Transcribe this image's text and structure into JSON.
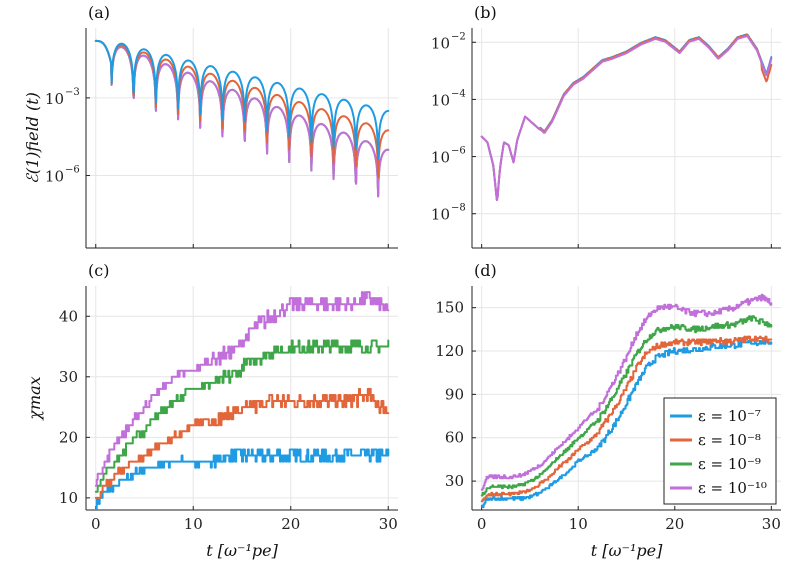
{
  "colors": [
    "#1f9be3",
    "#e2663a",
    "#3ea649",
    "#c16fda"
  ],
  "legend": {
    "entries": [
      "ε = 10⁻⁷",
      "ε = 10⁻⁸",
      "ε = 10⁻⁹",
      "ε = 10⁻¹⁰"
    ],
    "placement": "bottom-right of panel (d)"
  },
  "chart_data": [
    {
      "id": "a",
      "panel_label": "(a)",
      "type": "line",
      "yscale": "log",
      "xlim": [
        -1,
        31
      ],
      "ylim_log10": [
        -8.8,
        -0.3
      ],
      "ytick_exponents": [
        -3,
        -6
      ],
      "ylabel": "ℰ(1)field (t)",
      "xlabel": "",
      "grid": true,
      "envelope_log10": [
        {
          "series": "ε = 10⁻⁷",
          "start": -0.8,
          "end_slope": -0.08,
          "end": -3.8
        },
        {
          "series": "ε = 10⁻⁸",
          "start": -0.8,
          "end_slope": -0.115,
          "end": -4.4
        },
        {
          "series": "ε = 10⁻⁹",
          "start": -0.8,
          "end_slope": -0.13,
          "end": -5.2
        },
        {
          "series": "ε = 10⁻¹⁰",
          "start": -0.8,
          "end_slope": -0.13,
          "end": -5.2
        }
      ]
    },
    {
      "id": "b",
      "panel_label": "(b)",
      "type": "line",
      "yscale": "log",
      "xlim": [
        -1,
        31
      ],
      "ylim_log10": [
        -9.2,
        -1.5
      ],
      "ytick_exponents": [
        -2,
        -4,
        -6,
        -8
      ],
      "grid": true,
      "x": [
        0,
        0.6,
        1.2,
        1.6,
        1.9,
        2.3,
        2.8,
        3.3,
        3.7,
        4.5,
        5.5,
        6.5,
        7.3,
        8.5,
        9.5,
        10.5,
        11.5,
        12.5,
        13.5,
        15,
        16.5,
        18,
        19,
        20.5,
        21.5,
        22.5,
        23.5,
        24.5,
        25.5,
        26.5,
        27.5,
        28.5,
        29.5,
        30
      ],
      "y_log10": [
        -5.3,
        -5.5,
        -6.3,
        -7.6,
        -6.4,
        -5.5,
        -5.6,
        -6.2,
        -5.4,
        -4.6,
        -4.9,
        -5.2,
        -4.8,
        -3.9,
        -3.5,
        -3.3,
        -3.0,
        -2.7,
        -2.6,
        -2.4,
        -2.1,
        -1.9,
        -2.0,
        -2.4,
        -2.0,
        -1.9,
        -2.2,
        -2.6,
        -2.3,
        -1.9,
        -1.8,
        -2.3,
        -3.2,
        -2.6
      ]
    },
    {
      "id": "c",
      "panel_label": "(c)",
      "type": "line",
      "xlim": [
        -1,
        31
      ],
      "ylim": [
        8,
        45
      ],
      "yticks": [
        10,
        20,
        30,
        40
      ],
      "xticks": [
        0,
        10,
        20,
        30
      ],
      "ylabel": "χmax",
      "xlabel": "t [ω⁻¹pe]",
      "grid": true,
      "x": [
        0,
        1,
        2,
        3,
        4,
        5,
        6,
        8,
        10,
        12,
        14,
        16,
        18,
        20,
        22,
        24,
        26,
        28,
        30
      ],
      "series": [
        {
          "name": "ε = 10⁻⁷",
          "values": [
            9,
            11,
            12,
            13,
            14,
            15,
            15,
            16,
            16,
            16,
            17,
            17,
            17,
            17,
            17,
            17,
            17,
            17,
            17
          ]
        },
        {
          "name": "ε = 10⁻⁸",
          "values": [
            10,
            12,
            14,
            15,
            16,
            17,
            18,
            20,
            22,
            23,
            24,
            25,
            26,
            26,
            26,
            26,
            26,
            27,
            24
          ]
        },
        {
          "name": "ε = 10⁻⁹",
          "values": [
            11,
            14,
            16,
            18,
            20,
            21,
            23,
            26,
            28,
            29,
            30,
            33,
            34,
            35,
            35,
            35,
            35,
            35,
            35
          ]
        },
        {
          "name": "ε = 10⁻¹⁰",
          "values": [
            13,
            16,
            19,
            21,
            23,
            25,
            27,
            30,
            31,
            33,
            34,
            38,
            40,
            42,
            42,
            42,
            42,
            43,
            41
          ]
        }
      ]
    },
    {
      "id": "d",
      "panel_label": "(d)",
      "type": "line",
      "xlim": [
        -1,
        31
      ],
      "ylim": [
        10,
        165
      ],
      "yticks": [
        30,
        60,
        90,
        120,
        150
      ],
      "xticks": [
        0,
        10,
        20,
        30
      ],
      "xlabel": "t [ω⁻¹pe]",
      "grid": true,
      "x": [
        0,
        0.5,
        1,
        2,
        3,
        4,
        5,
        6,
        7,
        8,
        9,
        10,
        11,
        12,
        13,
        14,
        15,
        16,
        17,
        18,
        19,
        20,
        22,
        24,
        26,
        28,
        29,
        30
      ],
      "series": [
        {
          "name": "ε = 10⁻⁷",
          "values": [
            12,
            17,
            18,
            18,
            18,
            18,
            19,
            22,
            26,
            32,
            37,
            44,
            48,
            53,
            62,
            72,
            84,
            97,
            108,
            115,
            118,
            120,
            121,
            123,
            124,
            126,
            126,
            126
          ]
        },
        {
          "name": "ε = 10⁻⁸",
          "values": [
            16,
            20,
            21,
            21,
            21,
            22,
            24,
            28,
            33,
            40,
            45,
            52,
            57,
            63,
            73,
            83,
            95,
            108,
            118,
            123,
            125,
            126,
            126,
            127,
            127,
            129,
            128,
            128
          ]
        },
        {
          "name": "ε = 10⁻⁹",
          "values": [
            20,
            25,
            26,
            26,
            26,
            27,
            30,
            34,
            40,
            47,
            53,
            60,
            66,
            72,
            82,
            93,
            105,
            118,
            128,
            134,
            136,
            137,
            135,
            137,
            138,
            143,
            140,
            138
          ]
        },
        {
          "name": "ε = 10⁻¹⁰",
          "values": [
            24,
            32,
            33,
            33,
            33,
            34,
            37,
            41,
            47,
            54,
            60,
            67,
            74,
            80,
            91,
            103,
            116,
            132,
            142,
            149,
            151,
            150,
            146,
            146,
            150,
            155,
            157,
            153
          ]
        }
      ]
    }
  ]
}
